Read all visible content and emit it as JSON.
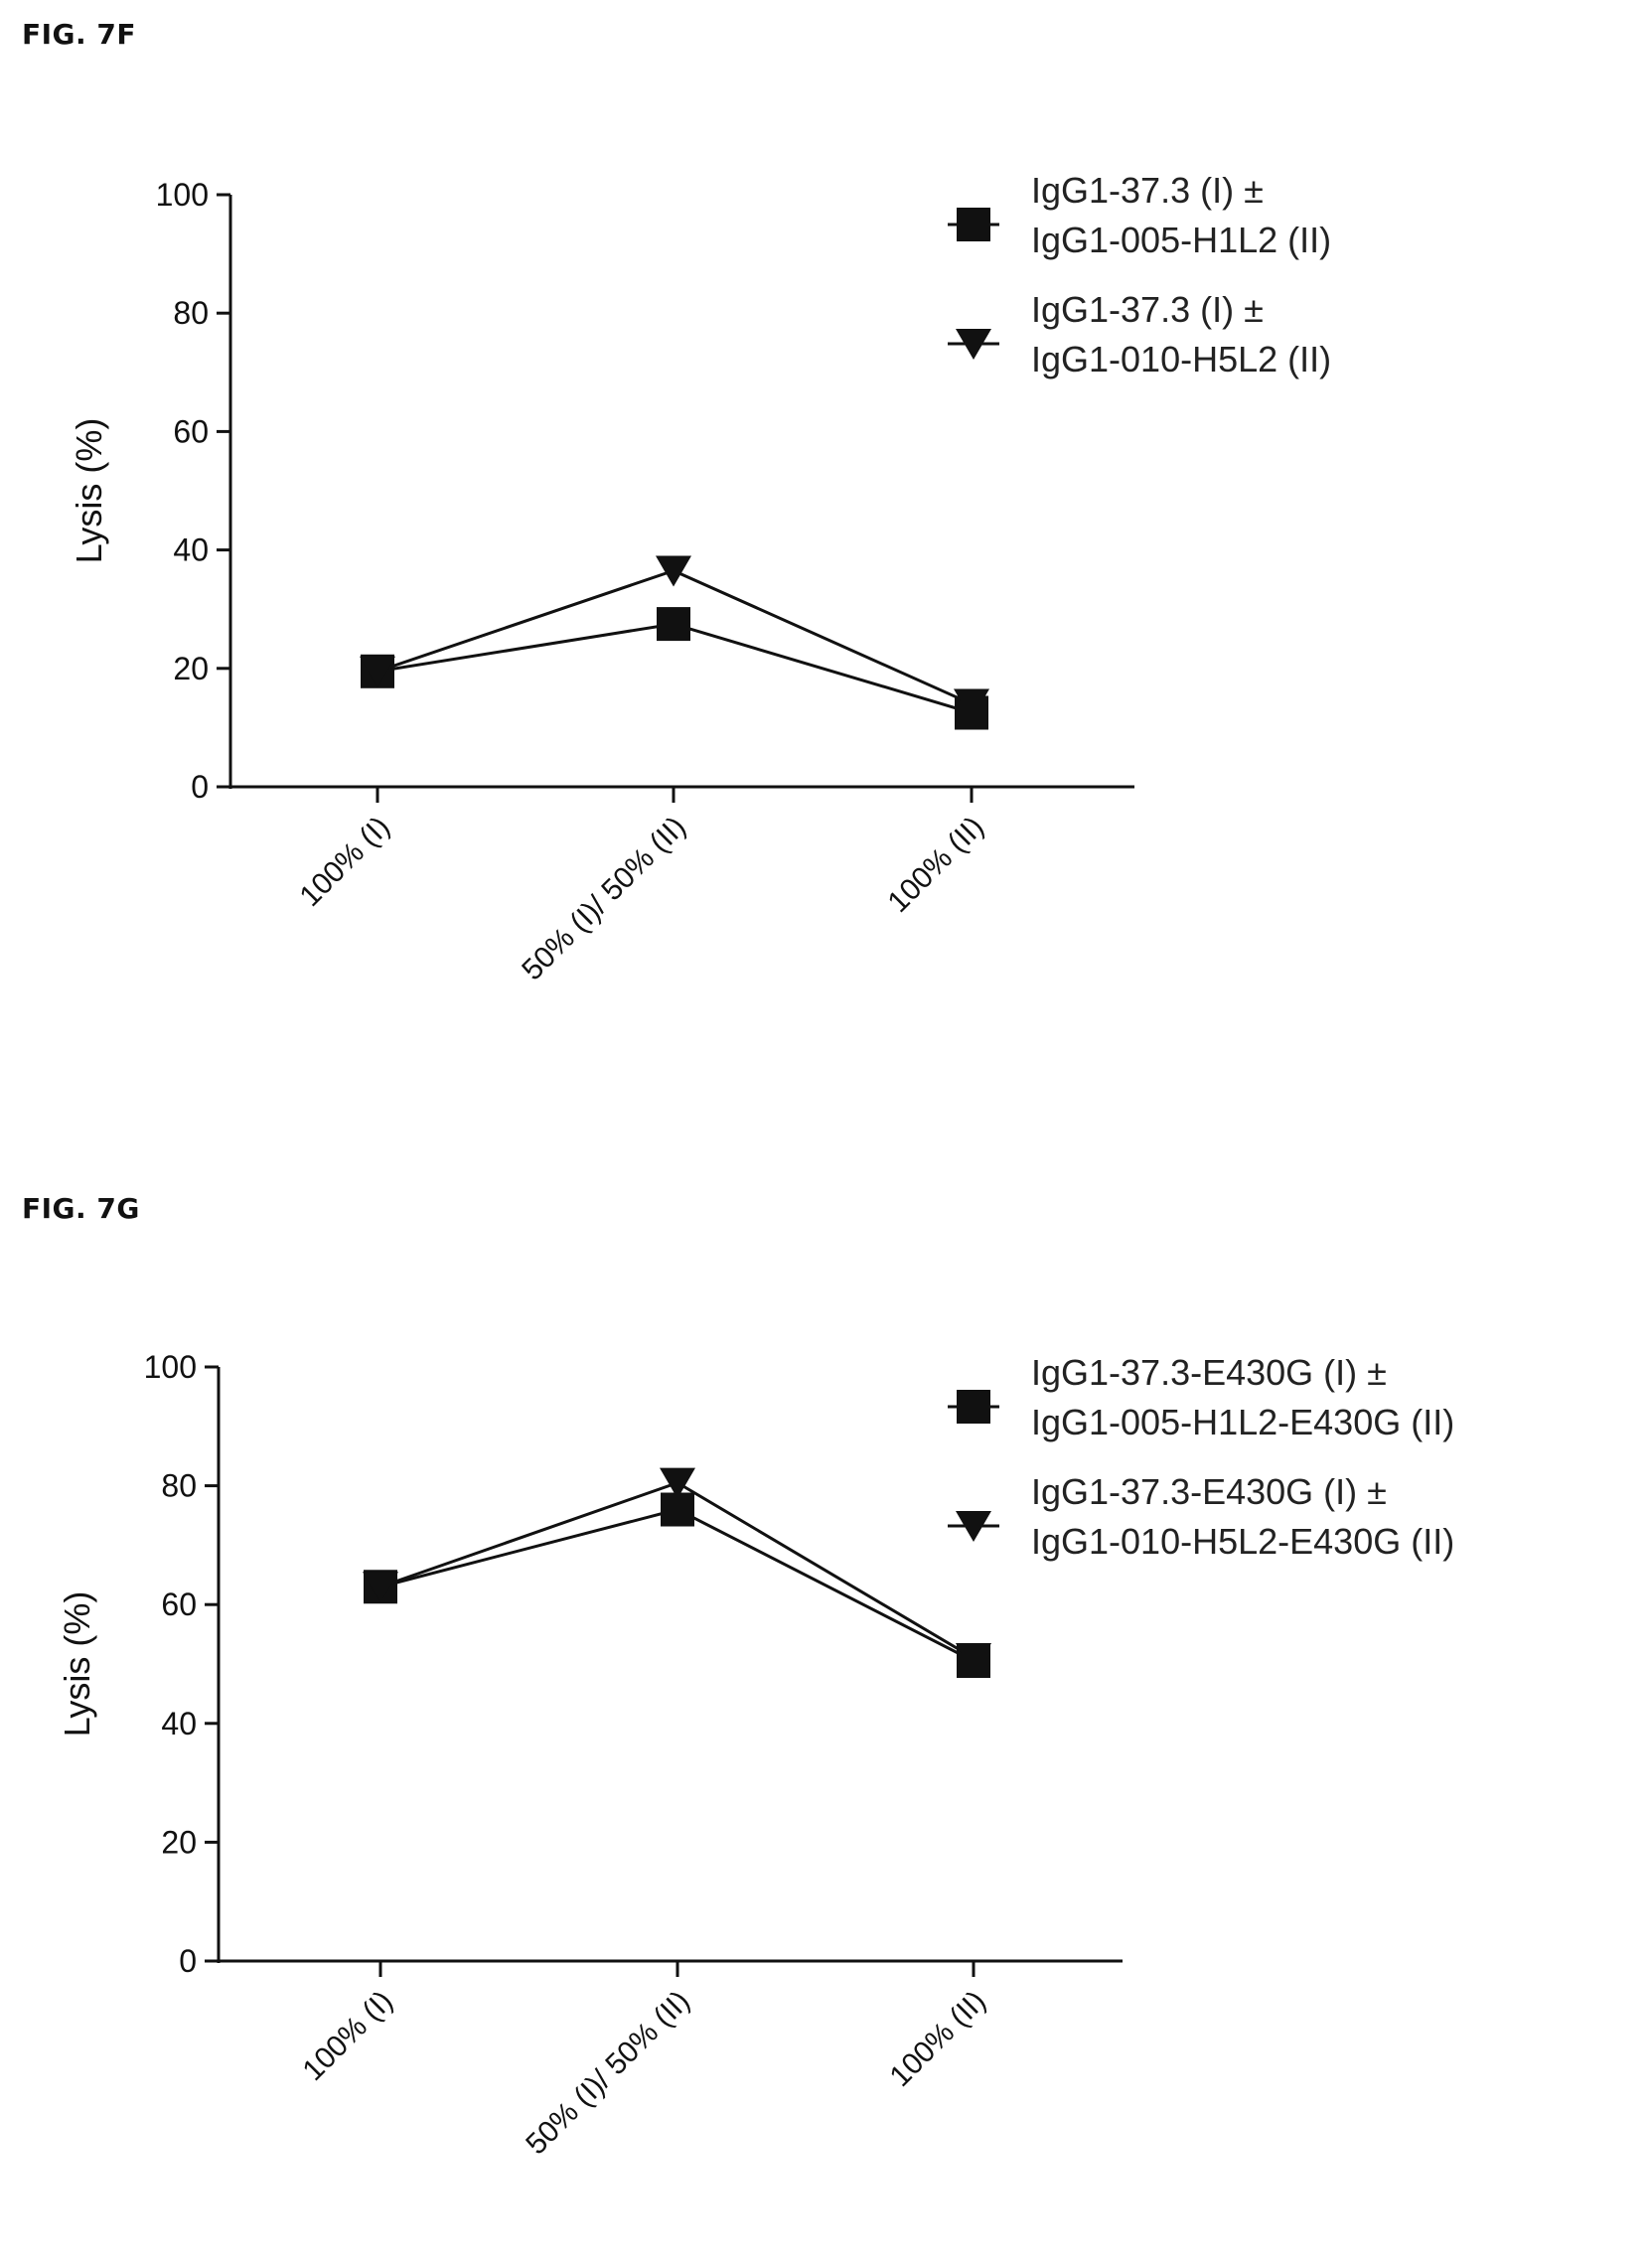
{
  "figures": [
    {
      "label": "FIG. 7F"
    },
    {
      "label": "FIG. 7G"
    }
  ],
  "chart_data": [
    {
      "type": "line",
      "title": "",
      "xlabel": "",
      "ylabel": "Lysis (%)",
      "ylim": [
        0,
        100
      ],
      "yticks": [
        "0",
        "20",
        "40",
        "60",
        "80",
        "100"
      ],
      "categories": [
        "100% (I)",
        "50% (I)/ 50% (II)",
        "100% (II)"
      ],
      "legend_position": "top-right",
      "series": [
        {
          "name": "IgG1-37.3 (I) ±\nIgG1-005-H1L2 (II)",
          "name_lines": [
            "IgG1-37.3 (I) ±",
            "IgG1-005-H1L2 (II)"
          ],
          "marker": "square",
          "values": [
            19.5,
            27.5,
            12.5
          ]
        },
        {
          "name": "IgG1-37.3 (I) ±\nIgG1-010-H5L2 (II)",
          "name_lines": [
            "IgG1-37.3 (I) ±",
            "IgG1-010-H5L2 (II)"
          ],
          "marker": "triangle-down",
          "values": [
            19.5,
            36.5,
            14
          ]
        }
      ]
    },
    {
      "type": "line",
      "title": "",
      "xlabel": "",
      "ylabel": "Lysis (%)",
      "ylim": [
        0,
        100
      ],
      "yticks": [
        "0",
        "20",
        "40",
        "60",
        "80",
        "100"
      ],
      "categories": [
        "100% (I)",
        "50% (I)/ 50% (II)",
        "100% (II)"
      ],
      "legend_position": "top-right",
      "series": [
        {
          "name": "IgG1-37.3-E430G (I) ±\nIgG1-005-H1L2-E430G (II)",
          "name_lines": [
            "IgG1-37.3-E430G (I) ±",
            "IgG1-005-H1L2-E430G (II)"
          ],
          "marker": "square",
          "values": [
            63,
            76,
            50.5
          ]
        },
        {
          "name": "IgG1-37.3-E430G (I) ±\nIgG1-010-H5L2-E430G (II)",
          "name_lines": [
            "IgG1-37.3-E430G (I) ±",
            "IgG1-010-H5L2-E430G (II)"
          ],
          "marker": "triangle-down",
          "values": [
            63,
            80.5,
            51
          ]
        }
      ]
    }
  ]
}
